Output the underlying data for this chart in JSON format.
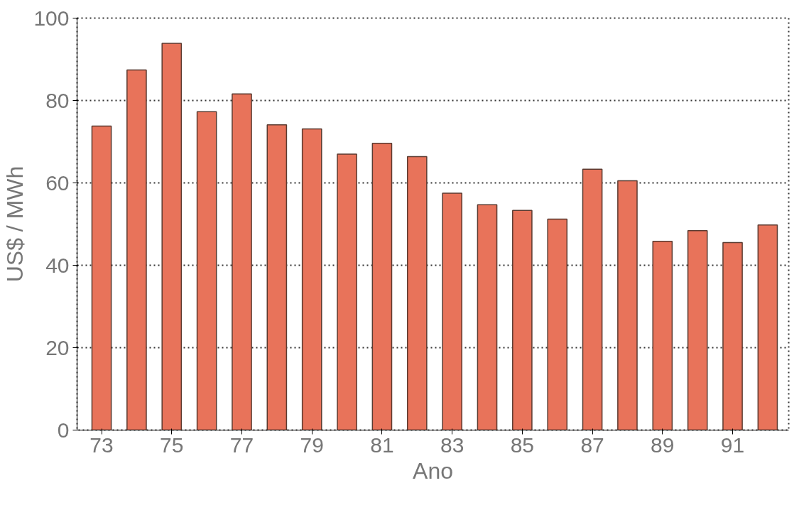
{
  "chart_data": {
    "type": "bar",
    "xlabel": "Ano",
    "ylabel": "US$ / MWh",
    "categories": [
      "73",
      null,
      "75",
      null,
      "77",
      null,
      "79",
      null,
      "81",
      null,
      "83",
      null,
      "85",
      null,
      "87",
      null,
      "89",
      null,
      "91",
      null
    ],
    "values": [
      73.8,
      87.4,
      93.9,
      77.3,
      81.6,
      74.1,
      73.1,
      67.0,
      69.6,
      66.4,
      57.5,
      54.7,
      53.3,
      51.2,
      63.3,
      60.5,
      45.8,
      48.4,
      45.5,
      49.8
    ],
    "color": "#e8735a",
    "ylim": [
      0,
      100
    ],
    "yticks": [
      0,
      20,
      40,
      60,
      80,
      100
    ],
    "grid": "y",
    "line_style": "dotted"
  }
}
